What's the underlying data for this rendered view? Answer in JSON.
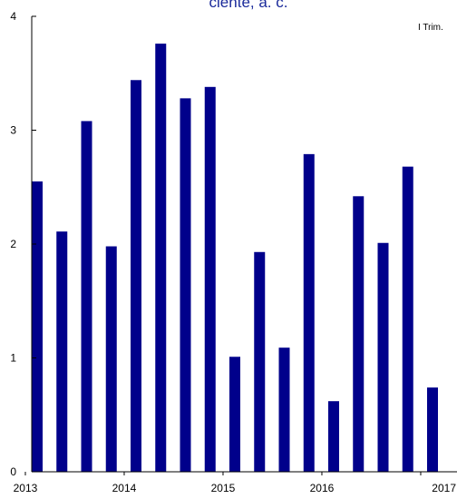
{
  "chart_data": {
    "type": "bar",
    "title": "ciente, a. c.",
    "legend": {
      "label": "I Trim.",
      "placement": "top-right"
    },
    "color": "#00008b",
    "ylim": [
      0,
      4
    ],
    "yticks": [
      0,
      1,
      2,
      3,
      4
    ],
    "grid": false,
    "x_tick_labels": [
      "2013",
      "2014",
      "2015",
      "2016",
      "2017"
    ],
    "x_tick_positions": [
      0,
      4,
      8,
      12,
      16
    ],
    "series": [
      {
        "values": [
          2.55,
          2.11,
          3.08,
          1.98,
          3.44,
          3.76,
          3.28,
          3.38,
          1.01,
          1.93,
          1.09,
          2.79,
          0.62,
          2.42,
          2.01,
          2.68,
          0.74
        ]
      }
    ]
  }
}
